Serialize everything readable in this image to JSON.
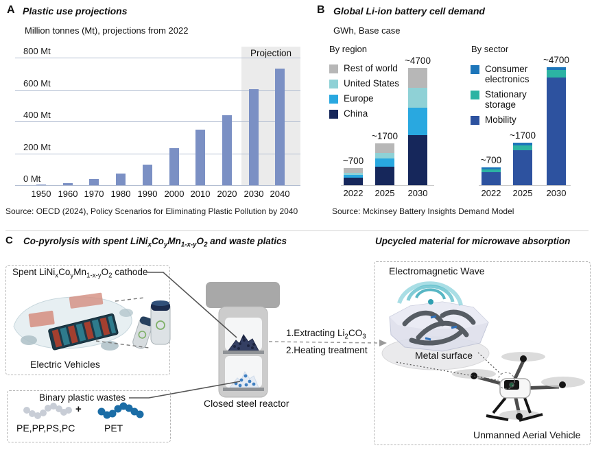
{
  "panelA": {
    "label": "A",
    "title": "Plastic use projections",
    "subtitle": "Million tonnes (Mt), projections from 2022"
  },
  "panelB": {
    "label": "B",
    "title": "Global Li-ion battery cell demand",
    "subtitle": "GWh, Base case"
  },
  "panelC": {
    "label": "C",
    "title_rich": [
      {
        "t": "Co-pyrolysis with spent LiNi"
      },
      {
        "s": "x"
      },
      {
        "t": "Co"
      },
      {
        "s": "y"
      },
      {
        "t": "Mn"
      },
      {
        "s": "1-x-y"
      },
      {
        "t": "O"
      },
      {
        "s": "2"
      },
      {
        "t": " and waste platics"
      }
    ],
    "right_title": "Upcycled material for microwave absorption",
    "box1": {
      "label_rich": [
        {
          "t": "Spent LiNi"
        },
        {
          "s": "x"
        },
        {
          "t": "Co"
        },
        {
          "s": "y"
        },
        {
          "t": "Mn"
        },
        {
          "s": "1-x-y"
        },
        {
          "t": "O"
        },
        {
          "s": "2"
        },
        {
          "t": " cathode"
        }
      ],
      "caption": "Electric Vehicles"
    },
    "box2": {
      "label": "Binary plastic wastes",
      "left_chain_label": "PE,PP,PS,PC",
      "plus": "+",
      "right_chain_label": "PET",
      "gray_chain_color": "#c8cdd6",
      "blue_chain_color": "#1B6DA6"
    },
    "reactor": {
      "caption": "Closed steel reactor",
      "step1_rich": [
        {
          "t": "1.Extracting Li"
        },
        {
          "s": "2"
        },
        {
          "t": "CO"
        },
        {
          "s": "3"
        }
      ],
      "step2": "2.Heating treatment"
    },
    "right_box": {
      "em_wave_label": "Electromagnetic Wave",
      "metal_label": "Metal surface",
      "uav_label": "Unmanned Aerial Vehicle"
    }
  },
  "chart_data": [
    {
      "type": "bar",
      "title": "Plastic use projections",
      "unit": "Million tonnes (Mt), projections from 2022",
      "categories": [
        "1950",
        "1960",
        "1970",
        "1980",
        "1990",
        "2000",
        "2010",
        "2020",
        "2030",
        "2040"
      ],
      "values": [
        2,
        12,
        40,
        75,
        130,
        234,
        350,
        440,
        600,
        730
      ],
      "yticks": [
        800,
        600,
        400,
        200,
        0
      ],
      "ytick_labels": [
        "800 Mt",
        "600 Mt",
        "400 Mt",
        "200 Mt",
        "0 Mt"
      ],
      "ylim": [
        0,
        800
      ],
      "grid": true,
      "projection_label": "Projection",
      "projection_categories": [
        "2030",
        "2040"
      ],
      "projection_bg": "#ebebeb",
      "bar_color": "#7B90C4",
      "source": "Source: OECD (2024), Policy Scenarios for Eliminating Plastic Pollution by 2040"
    },
    {
      "type": "stacked-bar",
      "title": "Global Li-ion battery cell demand",
      "unit": "GWh, Base case",
      "categories": [
        "2022",
        "2025",
        "2030"
      ],
      "ylim": [
        0,
        4700
      ],
      "groups": [
        {
          "name": "By region",
          "totals": [
            "~700",
            "~1700",
            "~4700"
          ],
          "legend": [
            {
              "label": "Rest of world",
              "color": "#B7B7B7"
            },
            {
              "label": "United States",
              "color": "#8FD1D6"
            },
            {
              "label": "Europe",
              "color": "#29A8E0"
            },
            {
              "label": "China",
              "color": "#16275B"
            }
          ],
          "series": [
            {
              "name": "China",
              "color": "#16275B",
              "values": [
                310,
                750,
                2000
              ]
            },
            {
              "name": "Europe",
              "color": "#29A8E0",
              "values": [
                120,
                340,
                1100
              ]
            },
            {
              "name": "United States",
              "color": "#8FD1D6",
              "values": [
                80,
                220,
                800
              ]
            },
            {
              "name": "Rest of world",
              "color": "#B7B7B7",
              "values": [
                190,
                390,
                800
              ]
            }
          ]
        },
        {
          "name": "By sector",
          "totals": [
            "~700",
            "~1700",
            "~4700"
          ],
          "legend": [
            {
              "label": "Consumer electronics",
              "color": "#1D76BA"
            },
            {
              "label": "Stationary storage",
              "color": "#2CB3A3"
            },
            {
              "label": "Mobility",
              "color": "#2D529F"
            }
          ],
          "series": [
            {
              "name": "Mobility",
              "color": "#2D529F",
              "values": [
                520,
                1400,
                4300
              ]
            },
            {
              "name": "Stationary storage",
              "color": "#2CB3A3",
              "values": [
                100,
                200,
                300
              ]
            },
            {
              "name": "Consumer electronics",
              "color": "#1D76BA",
              "values": [
                80,
                100,
                100
              ]
            }
          ]
        }
      ],
      "source": "Source: Mckinsey Battery Insights Demand Model"
    }
  ]
}
